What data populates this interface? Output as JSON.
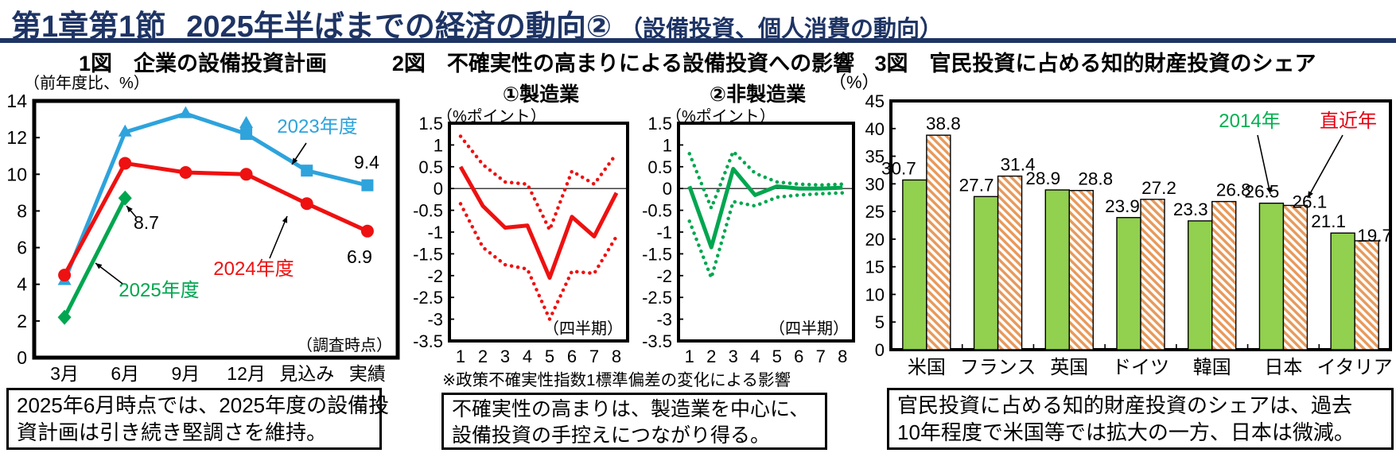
{
  "header": {
    "section": "第1章第1節",
    "title": "2025年半ばまでの経済の動向②",
    "subtitle": "（設備投資、個人消費の動向）"
  },
  "fig1": {
    "title": "1図　企業の設備投資計画",
    "unit_label": "（前年度比、%）",
    "survey_label": "（調査時点）",
    "caption_lines": [
      "2025年6月時点では、2025年度の設備投",
      "資計画は引き続き堅調さを維持。"
    ],
    "chart_data": {
      "type": "line",
      "title": "企業の設備投資計画",
      "ylabel": "前年度比、%",
      "ylim": [
        0,
        14
      ],
      "yticks": [
        14,
        12,
        10,
        8,
        6,
        4,
        2,
        0
      ],
      "categories": [
        "3月",
        "6月",
        "9月",
        "12月",
        "見込み",
        "実績"
      ],
      "series": [
        {
          "name": "2023年度",
          "color": "#2EA3DC",
          "marker": "triangle-square",
          "values": [
            4.2,
            12.3,
            13.3,
            12.2,
            10.2,
            9.4
          ],
          "end_label": "9.4"
        },
        {
          "name": "2024年度",
          "color": "#EE1111",
          "marker": "circle",
          "values": [
            4.5,
            10.6,
            10.1,
            10.0,
            8.4,
            6.9
          ],
          "end_label": "6.9"
        },
        {
          "name": "2025年度",
          "color": "#00A64F",
          "marker": "diamond",
          "values": [
            2.2,
            8.7
          ],
          "end_label": "8.7"
        }
      ]
    }
  },
  "fig2": {
    "title": "2図　不確実性の高まりによる設備投資への影響",
    "unit_label": "（%ポイント）",
    "quarter_label": "（四半期）",
    "note": "※政策不確実性指数1標準偏差の変化による影響",
    "caption_lines": [
      "不確実性の高まりは、製造業を中心に、",
      "設備投資の手控えにつながり得る。"
    ],
    "chart_data": [
      {
        "type": "line",
        "subtitle": "①製造業",
        "color": "#EE1111",
        "x": [
          1,
          2,
          3,
          4,
          5,
          6,
          7,
          8
        ],
        "xlabel": "四半期",
        "ylim": [
          -3.5,
          1.5
        ],
        "yticks": [
          1.5,
          1,
          0.5,
          0,
          -0.5,
          -1,
          -1.5,
          -2,
          -2.5,
          -3,
          -3.5
        ],
        "solid": [
          0.5,
          -0.4,
          -0.9,
          -0.85,
          -2.05,
          -0.65,
          -1.1,
          -0.1
        ],
        "upper": [
          1.2,
          0.55,
          0.15,
          0.1,
          -0.95,
          0.4,
          0.1,
          0.8
        ],
        "lower": [
          -0.35,
          -1.35,
          -1.75,
          -1.85,
          -3.0,
          -1.9,
          -1.95,
          -1.1
        ]
      },
      {
        "type": "line",
        "subtitle": "②非製造業",
        "color": "#00A64F",
        "x": [
          1,
          2,
          3,
          4,
          5,
          6,
          7,
          8
        ],
        "xlabel": "四半期",
        "ylim": [
          -3.5,
          1.5
        ],
        "yticks": [
          1.5,
          1,
          0.5,
          0,
          -0.5,
          -1,
          -1.5,
          -2,
          -2.5,
          -3,
          -3.5
        ],
        "solid": [
          0.05,
          -1.35,
          0.45,
          -0.15,
          0.05,
          0,
          0,
          0.02
        ],
        "upper": [
          0.8,
          -0.45,
          0.85,
          0.35,
          0.15,
          0.1,
          0.08,
          0.1
        ],
        "lower": [
          -0.75,
          -2.05,
          -0.3,
          -0.4,
          -0.2,
          -0.15,
          -0.12,
          -0.1
        ]
      }
    ]
  },
  "fig3": {
    "title": "3図　官民投資に占める知的財産投資のシェア",
    "unit_label": "（%）",
    "caption_lines": [
      "官民投資に占める知的財産投資のシェアは、過去",
      "10年程度で米国等では拡大の一方、日本は微減。"
    ],
    "chart_data": {
      "type": "bar",
      "ylim": [
        0,
        45
      ],
      "yticks": [
        45,
        40,
        35,
        30,
        25,
        20,
        15,
        10,
        5,
        0
      ],
      "categories": [
        "米国",
        "フランス",
        "英国",
        "ドイツ",
        "韓国",
        "日本",
        "イタリア"
      ],
      "series": [
        {
          "name": "2014年",
          "style": "solid",
          "color": "#92D050",
          "values": [
            30.7,
            27.7,
            28.9,
            23.9,
            23.3,
            26.5,
            21.1
          ]
        },
        {
          "name": "直近年",
          "style": "hatched",
          "color": "#E8995A",
          "values": [
            38.8,
            31.4,
            28.8,
            27.2,
            26.8,
            26.1,
            19.7
          ]
        }
      ],
      "legend": [
        {
          "label": "2014年",
          "text_color": "#00B050"
        },
        {
          "label": "直近年",
          "text_color": "#E60012"
        }
      ]
    }
  }
}
